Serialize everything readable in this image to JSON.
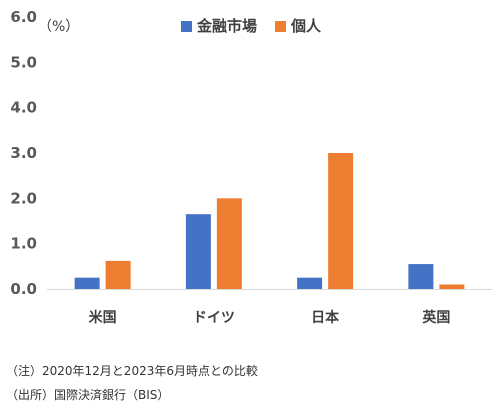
{
  "chart_data": {
    "type": "bar",
    "unit_label": "（%）",
    "categories": [
      "米国",
      "ドイツ",
      "日本",
      "英国"
    ],
    "series": [
      {
        "name": "金融市場",
        "color": "#4472C4",
        "values": [
          0.25,
          1.65,
          0.25,
          0.55
        ]
      },
      {
        "name": "個人",
        "color": "#ED7D31",
        "values": [
          0.62,
          2.0,
          3.0,
          0.1
        ]
      }
    ],
    "ylim": [
      0,
      6
    ],
    "yticks": [
      "0.0",
      "1.0",
      "2.0",
      "3.0",
      "4.0",
      "5.0",
      "6.0"
    ],
    "grid": false,
    "legend_position": "top-center"
  },
  "notes": {
    "note": "（注）2020年12月と2023年6月時点との比較",
    "source": "（出所）国際決済銀行（BIS）"
  }
}
